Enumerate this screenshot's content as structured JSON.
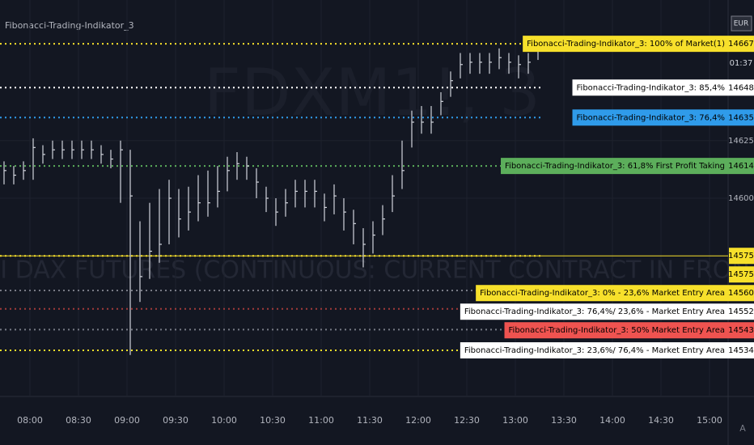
{
  "chart_data": {
    "type": "ohlc",
    "title": "Fibonacci-Trading-Indikator_3",
    "watermark": "FDXM1!, 3",
    "subtitle": "MINI DAX FUTURES (CONTINUOUS: CURRENT CONTRACT IN FRONT)",
    "currency": "EUR",
    "countdown": "01:37",
    "x": [
      464,
      470,
      476,
      482,
      488,
      494,
      500,
      506,
      512,
      518,
      524,
      530,
      536,
      542,
      548,
      554,
      560,
      566,
      572,
      578,
      584,
      590,
      596,
      602,
      608,
      614,
      620,
      626,
      632,
      638,
      644,
      650,
      656,
      662,
      668,
      674,
      680,
      686,
      692,
      698,
      704,
      710,
      716,
      722,
      728,
      734,
      740,
      746,
      752,
      758,
      764,
      770,
      776,
      782,
      788,
      794
    ],
    "series": [
      {
        "name": "close",
        "color": "#d1d4dc",
        "values": [
          14612,
          14610,
          14612,
          14622,
          14619,
          14621,
          14621,
          14621,
          14621,
          14621,
          14619,
          14617,
          14621,
          14601,
          14566,
          14577,
          14580,
          14600,
          14591,
          14594,
          14598,
          14598,
          14603,
          14612,
          14615,
          14614,
          14607,
          14600,
          14594,
          14598,
          14603,
          14603,
          14603,
          14596,
          14601,
          14594,
          14589,
          14580,
          14584,
          14591,
          14601,
          14612,
          14633,
          14633,
          14633,
          14642,
          14651,
          14658,
          14659,
          14659,
          14659,
          14661,
          14659,
          14658,
          14659,
          14666
        ]
      },
      {
        "name": "high",
        "color": "#d1d4dc",
        "values": [
          14616,
          14614,
          14616,
          14626,
          14623,
          14625,
          14625,
          14625,
          14625,
          14625,
          14623,
          14621,
          14625,
          14621,
          14590,
          14598,
          14604,
          14608,
          14604,
          14605,
          14610,
          14612,
          14614,
          14618,
          14620,
          14618,
          14613,
          14605,
          14600,
          14604,
          14608,
          14608,
          14608,
          14602,
          14606,
          14600,
          14595,
          14587,
          14590,
          14597,
          14610,
          14625,
          14638,
          14640,
          14640,
          14646,
          14655,
          14663,
          14663,
          14663,
          14663,
          14665,
          14663,
          14662,
          14663,
          14669
        ]
      },
      {
        "name": "low",
        "color": "#d1d4dc",
        "values": [
          14606,
          14606,
          14608,
          14608,
          14615,
          14617,
          14617,
          14617,
          14617,
          14617,
          14615,
          14613,
          14598,
          14532,
          14555,
          14565,
          14572,
          14580,
          14583,
          14586,
          14590,
          14592,
          14596,
          14603,
          14608,
          14608,
          14600,
          14594,
          14588,
          14592,
          14596,
          14596,
          14596,
          14590,
          14593,
          14586,
          14580,
          14570,
          14576,
          14584,
          14594,
          14604,
          14622,
          14628,
          14628,
          14636,
          14644,
          14652,
          14654,
          14654,
          14654,
          14656,
          14654,
          14652,
          14654,
          14660
        ]
      }
    ],
    "xlim": [
      461.5,
      911.5
    ],
    "xticks": [
      {
        "value": 480,
        "label": "08:00"
      },
      {
        "value": 510,
        "label": "08:30"
      },
      {
        "value": 540,
        "label": "09:00"
      },
      {
        "value": 570,
        "label": "09:30"
      },
      {
        "value": 600,
        "label": "10:00"
      },
      {
        "value": 630,
        "label": "10:30"
      },
      {
        "value": 660,
        "label": "11:00"
      },
      {
        "value": 690,
        "label": "11:30"
      },
      {
        "value": 720,
        "label": "12:00"
      },
      {
        "value": 750,
        "label": "12:30"
      },
      {
        "value": 780,
        "label": "13:00"
      },
      {
        "value": 810,
        "label": "13:30"
      },
      {
        "value": 840,
        "label": "14:00"
      },
      {
        "value": 870,
        "label": "14:30"
      },
      {
        "value": 900,
        "label": "15:00"
      }
    ],
    "ylim": [
      14514,
      14686
    ],
    "yticks": [
      14625,
      14600
    ],
    "grid": true,
    "levels": [
      {
        "label": "Fibonacci-Trading-Indikator_3: 100% of Market(1)",
        "value": 14667,
        "color": "#f7e02b",
        "line_color": "#f7e02b"
      },
      {
        "label": "Fibonacci-Trading-Indikator_3: 85,4%",
        "value": 14648,
        "color": "#ffffff",
        "line_color": "#ffffff"
      },
      {
        "label": "Fibonacci-Trading-Indikator_3: 76,4%",
        "value": 14635,
        "color": "#2f9bea",
        "line_color": "#2f9bea"
      },
      {
        "label": "Fibonacci-Trading-Indikator_3: 61,8% First Profit Taking",
        "value": 14614,
        "color": "#5cae5b",
        "line_color": "#5cae5b"
      },
      {
        "value": 14575,
        "color": "#f7e02b",
        "line_color": "#f7e02b",
        "solid": true
      },
      {
        "value": 14575,
        "color": "#f7e02b",
        "line_color": "#f7e02b"
      },
      {
        "label": "Fibonacci-Trading-Indikator_3: 0% - 23,6% Market Entry Area",
        "value": 14560,
        "color": "#f7e02b",
        "line_color": "#787b86"
      },
      {
        "label": "Fibonacci-Trading-Indikator_3: 76,4%/ 23,6% - Market Entry Area",
        "value": 14552,
        "color": "#ffffff",
        "line_color": "#a33a3a"
      },
      {
        "label": "Fibonacci-Trading-Indikator_3: 50% Market Entry Area",
        "value": 14543,
        "color": "#ef5350",
        "line_color": "#787b86"
      },
      {
        "label": "Fibonacci-Trading-Indikator_3: 23,6%/ 76,4% - Market Entry Area",
        "value": 14534,
        "color": "#ffffff",
        "line_color": "#f7e02b"
      }
    ]
  }
}
